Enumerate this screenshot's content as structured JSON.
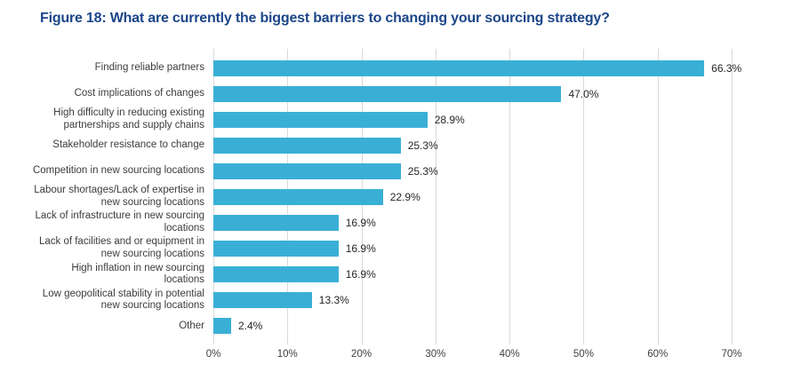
{
  "title": "Figure 18: What are currently the biggest barriers to changing your sourcing strategy?",
  "colors": {
    "bar": "#3AAFD6",
    "title_text": "#1B4689",
    "category_text": "#3C3C3C",
    "value_text": "#262626",
    "gridline": "#D9D9D9",
    "tick_text": "#404040",
    "background": "#FFFFFF"
  },
  "chart_data": {
    "type": "bar",
    "orientation": "horizontal",
    "title": "Figure 18: What are currently the biggest barriers to changing your sourcing strategy?",
    "categories": [
      "Finding reliable partners",
      "Cost implications of changes",
      "High difficulty in reducing existing\npartnerships and supply chains",
      "Stakeholder resistance to change",
      "Competition in new sourcing locations",
      "Labour shortages/Lack of expertise in\nnew sourcing locations",
      "Lack of infrastructure in new sourcing\nlocations",
      "Lack of facilities and or equipment in\nnew sourcing locations",
      "High inflation in new sourcing\nlocations",
      "Low geopolitical stability in potential\nnew sourcing locations",
      "Other"
    ],
    "values": [
      66.3,
      47.0,
      28.9,
      25.3,
      25.3,
      22.9,
      16.9,
      16.9,
      16.9,
      13.3,
      2.4
    ],
    "value_labels": [
      "66.3%",
      "47.0%",
      "28.9%",
      "25.3%",
      "25.3%",
      "22.9%",
      "16.9%",
      "16.9%",
      "16.9%",
      "13.3%",
      "2.4%"
    ],
    "xlabel": "",
    "ylabel": "",
    "xlim": [
      0,
      70
    ],
    "x_tick_labels": [
      "0%",
      "10%",
      "20%",
      "30%",
      "40%",
      "50%",
      "60%",
      "70%"
    ],
    "x_tick_step": 10,
    "grid": "vertical",
    "legend": "none",
    "data_labels": "outside-end"
  }
}
